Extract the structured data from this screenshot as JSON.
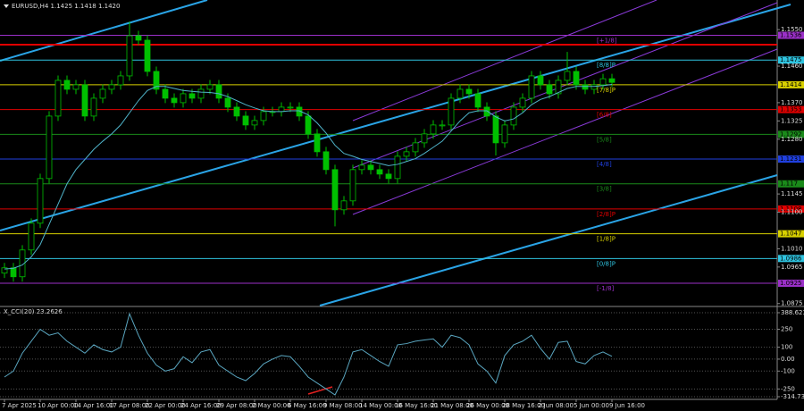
{
  "chart_data": [
    {
      "type": "candlestick",
      "title": "EURUSD,H4  1.1425 1.1418 1.1420",
      "categories": [
        "7 Apr 2025",
        null,
        null,
        null,
        "10 Apr 00:00",
        null,
        null,
        null,
        "14 Apr 16:00",
        null,
        null,
        null,
        "17 Apr 08:00",
        null,
        null,
        null,
        "22 Apr 00:00",
        null,
        null,
        null,
        "24 Apr 16:00",
        null,
        null,
        null,
        "29 Apr 08:00",
        null,
        null,
        null,
        "2 May 00:00",
        null,
        null,
        null,
        "6 May 16:00",
        null,
        null,
        null,
        "9 May 08:00",
        null,
        null,
        null,
        "14 May 00:00",
        null,
        null,
        null,
        "16 May 16:00",
        null,
        null,
        null,
        "21 May 08:00",
        null,
        null,
        null,
        "26 May 00:00",
        null,
        null,
        null,
        "28 May 16:00",
        null,
        null,
        null,
        "2 Jun 08:00",
        null,
        null,
        null,
        "5 Jun 00:00",
        null,
        null,
        null,
        "9 Jun 16:00"
      ],
      "open": [
        1.095,
        1.0963,
        1.0941,
        1.1007,
        1.1073,
        1.1183,
        1.1337,
        1.1425,
        1.1403,
        1.1414,
        1.1337,
        1.1381,
        1.1403,
        1.1414,
        1.1436,
        1.1535,
        1.1524,
        1.1447,
        1.1403,
        1.1381,
        1.137,
        1.1392,
        1.1381,
        1.1403,
        1.1414,
        1.1381,
        1.1359,
        1.1337,
        1.1315,
        1.1326,
        1.1348,
        1.1348,
        1.1359,
        1.1359,
        1.1337,
        1.1293,
        1.1249,
        1.1205,
        1.1106,
        1.1128,
        1.1205,
        1.1216,
        1.1205,
        1.1194,
        1.1183,
        1.1238,
        1.1249,
        1.1271,
        1.1293,
        1.1315,
        1.1315,
        1.1381,
        1.1403,
        1.1392,
        1.1359,
        1.1337,
        1.1271,
        1.1315,
        1.1359,
        1.1381,
        1.1436,
        1.1414,
        1.1392,
        1.1425,
        1.1447,
        1.1414,
        1.1403,
        1.1414,
        1.1429
      ],
      "high": [
        1.0975,
        1.0975,
        1.1019,
        1.1085,
        1.1195,
        1.1349,
        1.1437,
        1.1437,
        1.1426,
        1.1426,
        1.1393,
        1.1415,
        1.1426,
        1.1448,
        1.157,
        1.1547,
        1.1536,
        1.1459,
        1.1415,
        1.1393,
        1.1404,
        1.1404,
        1.1415,
        1.1426,
        1.1426,
        1.1393,
        1.1371,
        1.1349,
        1.1338,
        1.136,
        1.136,
        1.1371,
        1.1371,
        1.1371,
        1.1349,
        1.1305,
        1.1261,
        1.1217,
        1.114,
        1.1217,
        1.1228,
        1.1228,
        1.1217,
        1.1206,
        1.125,
        1.1261,
        1.1283,
        1.1305,
        1.1327,
        1.1327,
        1.1393,
        1.1415,
        1.1415,
        1.1404,
        1.1371,
        1.1349,
        1.1327,
        1.1371,
        1.1393,
        1.1448,
        1.1448,
        1.1426,
        1.1437,
        1.1495,
        1.1459,
        1.1426,
        1.1426,
        1.1441,
        1.1441
      ],
      "low": [
        1.0938,
        1.0929,
        1.0929,
        1.0995,
        1.1061,
        1.1171,
        1.1325,
        1.1391,
        1.1391,
        1.1325,
        1.1325,
        1.1369,
        1.1391,
        1.1402,
        1.1424,
        1.1512,
        1.1435,
        1.1391,
        1.1369,
        1.1358,
        1.1358,
        1.1369,
        1.1369,
        1.1391,
        1.1369,
        1.1347,
        1.1325,
        1.1303,
        1.1303,
        1.1314,
        1.1336,
        1.1336,
        1.1347,
        1.1325,
        1.1281,
        1.1237,
        1.1193,
        1.1065,
        1.1094,
        1.1116,
        1.1193,
        1.1193,
        1.1182,
        1.1171,
        1.1171,
        1.1226,
        1.1237,
        1.1259,
        1.1281,
        1.1303,
        1.1303,
        1.1369,
        1.138,
        1.1347,
        1.1325,
        1.124,
        1.1259,
        1.1303,
        1.1347,
        1.1369,
        1.1402,
        1.138,
        1.138,
        1.1413,
        1.1402,
        1.1391,
        1.1391,
        1.1402,
        1.1408
      ],
      "close": [
        1.0963,
        1.0941,
        1.1007,
        1.1073,
        1.1183,
        1.1337,
        1.1425,
        1.1403,
        1.1414,
        1.1337,
        1.1381,
        1.1403,
        1.1414,
        1.1436,
        1.1535,
        1.1524,
        1.1447,
        1.1403,
        1.1381,
        1.137,
        1.1392,
        1.1381,
        1.1403,
        1.1414,
        1.1381,
        1.1359,
        1.1337,
        1.1315,
        1.1326,
        1.1348,
        1.1348,
        1.1359,
        1.1359,
        1.1337,
        1.1293,
        1.1249,
        1.1205,
        1.1106,
        1.1128,
        1.1205,
        1.1216,
        1.1205,
        1.1194,
        1.1183,
        1.1238,
        1.1249,
        1.1271,
        1.1293,
        1.1315,
        1.1315,
        1.1381,
        1.1403,
        1.1392,
        1.1359,
        1.1337,
        1.1271,
        1.1315,
        1.1359,
        1.1381,
        1.1436,
        1.1414,
        1.1392,
        1.1425,
        1.1447,
        1.1414,
        1.1403,
        1.1414,
        1.1429,
        1.142
      ],
      "color": "#00c000",
      "ma": [
        1.096,
        1.0962,
        1.097,
        1.099,
        1.102,
        1.107,
        1.112,
        1.117,
        1.1205,
        1.123,
        1.1255,
        1.1275,
        1.1293,
        1.1315,
        1.1345,
        1.1375,
        1.14,
        1.141,
        1.141,
        1.1405,
        1.14,
        1.1398,
        1.1396,
        1.1395,
        1.1392,
        1.1385,
        1.1375,
        1.1365,
        1.1357,
        1.135,
        1.1348,
        1.1348,
        1.135,
        1.135,
        1.134,
        1.132,
        1.1295,
        1.1265,
        1.1245,
        1.1238,
        1.123,
        1.1225,
        1.122,
        1.1215,
        1.1218,
        1.1225,
        1.1232,
        1.1245,
        1.126,
        1.1275,
        1.13,
        1.1325,
        1.1345,
        1.135,
        1.135,
        1.1335,
        1.1325,
        1.133,
        1.1345,
        1.1365,
        1.1378,
        1.1385,
        1.1395,
        1.1405,
        1.141,
        1.141,
        1.141,
        1.1412,
        1.1415
      ],
      "ma_color": "#4fb3c9",
      "ylim": [
        1.087,
        1.1612
      ],
      "yticks": [
        {
          "value": 1.155,
          "label": "1.1550"
        },
        {
          "value": 1.146,
          "label": "1.1460"
        },
        {
          "value": 1.137,
          "label": "1.1370"
        },
        1.1325,
        {
          "value": 1.128,
          "label": "1.1280"
        },
        1.1145,
        {
          "value": 1.11,
          "label": "1.1100"
        },
        {
          "value": 1.101,
          "label": "1.1010"
        },
        1.0965,
        1.0875
      ],
      "murray_levels": [
        {
          "name": "[+1/8]",
          "value": 1.1536,
          "color": "#9b30c8"
        },
        {
          "name": "[8/8]P",
          "value": 1.1475,
          "color": "#2fc4e0"
        },
        {
          "name": "[7/8]P",
          "value": 1.1414,
          "color": "#d8d000"
        },
        {
          "name": "[6/8]",
          "value": 1.1353,
          "color": "#e00000"
        },
        {
          "name": "[5/8]",
          "value": 1.1292,
          "color": "#1a8a1a"
        },
        {
          "name": "[4/8]",
          "value": 1.1231,
          "color": "#2040e0"
        },
        {
          "name": "[3/8]",
          "value": 1.117,
          "color": "#1a8a1a"
        },
        {
          "name": "[2/8]P",
          "value": 1.1108,
          "color": "#e00000"
        },
        {
          "name": "[1/8]P",
          "value": 1.1047,
          "color": "#d8d000"
        },
        {
          "name": "[0/8]P",
          "value": 1.0986,
          "color": "#2fc4e0"
        },
        {
          "name": "[-1/8]",
          "value": 1.0925,
          "color": "#9b30c8"
        }
      ],
      "red_levels": [
        1.1513
      ],
      "red_color": "#e00000"
    },
    {
      "type": "line",
      "title": "X_CCI(20) 23.2626",
      "values": [
        -150,
        -100,
        50,
        150,
        250,
        200,
        220,
        150,
        100,
        50,
        120,
        80,
        60,
        100,
        380,
        200,
        50,
        -50,
        -100,
        -80,
        20,
        -30,
        60,
        80,
        -50,
        -100,
        -150,
        -180,
        -120,
        -40,
        0,
        30,
        20,
        -60,
        -150,
        -200,
        -250,
        -300,
        -150,
        60,
        80,
        30,
        -20,
        -60,
        120,
        130,
        150,
        160,
        170,
        100,
        200,
        180,
        120,
        -40,
        -100,
        -200,
        30,
        120,
        150,
        200,
        90,
        0,
        140,
        150,
        -20,
        -40,
        30,
        60,
        23.2626
      ],
      "color": "#5aa6c0",
      "ylim": [
        -314.734,
        388.6237
      ],
      "yticks": [
        388.6237,
        250,
        100,
        {
          "value": 0,
          "label": "0.00"
        },
        -100,
        -250,
        -314.734
      ]
    }
  ]
}
